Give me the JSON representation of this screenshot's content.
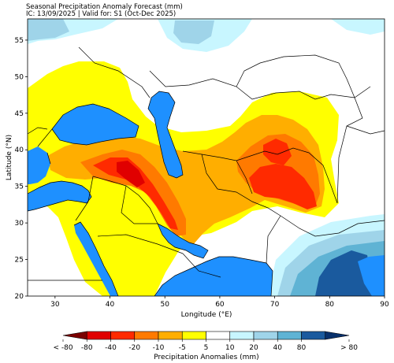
{
  "title_line1": "Seasonal Precipitation Anomaly Forecast (mm)",
  "title_line2": "IC: 13/09/2025 | Valid for: S1 (Oct-Dec 2025)",
  "xlabel": "Longitude (°E)",
  "ylabel": "Latitude (°N)",
  "colorbar_label": "Precipitation Anomalies (mm)",
  "x_ticks": [
    "30",
    "40",
    "50",
    "60",
    "70",
    "80",
    "90"
  ],
  "y_ticks": [
    "20",
    "25",
    "30",
    "35",
    "40",
    "45",
    "50",
    "55"
  ],
  "colorbar_ticks": [
    "< -80",
    "-80",
    "-40",
    "-20",
    "-10",
    "-5",
    "5",
    "10",
    "20",
    "40",
    "80",
    "> 80"
  ],
  "colorbar_colors": [
    "#7a0000",
    "#e00000",
    "#ff2a00",
    "#ff7a00",
    "#ffae00",
    "#ffff00",
    "#ffffff",
    "#c8f6ff",
    "#9fd4e9",
    "#5fb3d4",
    "#1a5a9e",
    "#08306b"
  ],
  "colors": {
    "sea": "#1e90ff",
    "land_neutral": "#ffffff",
    "border": "#000000"
  }
}
